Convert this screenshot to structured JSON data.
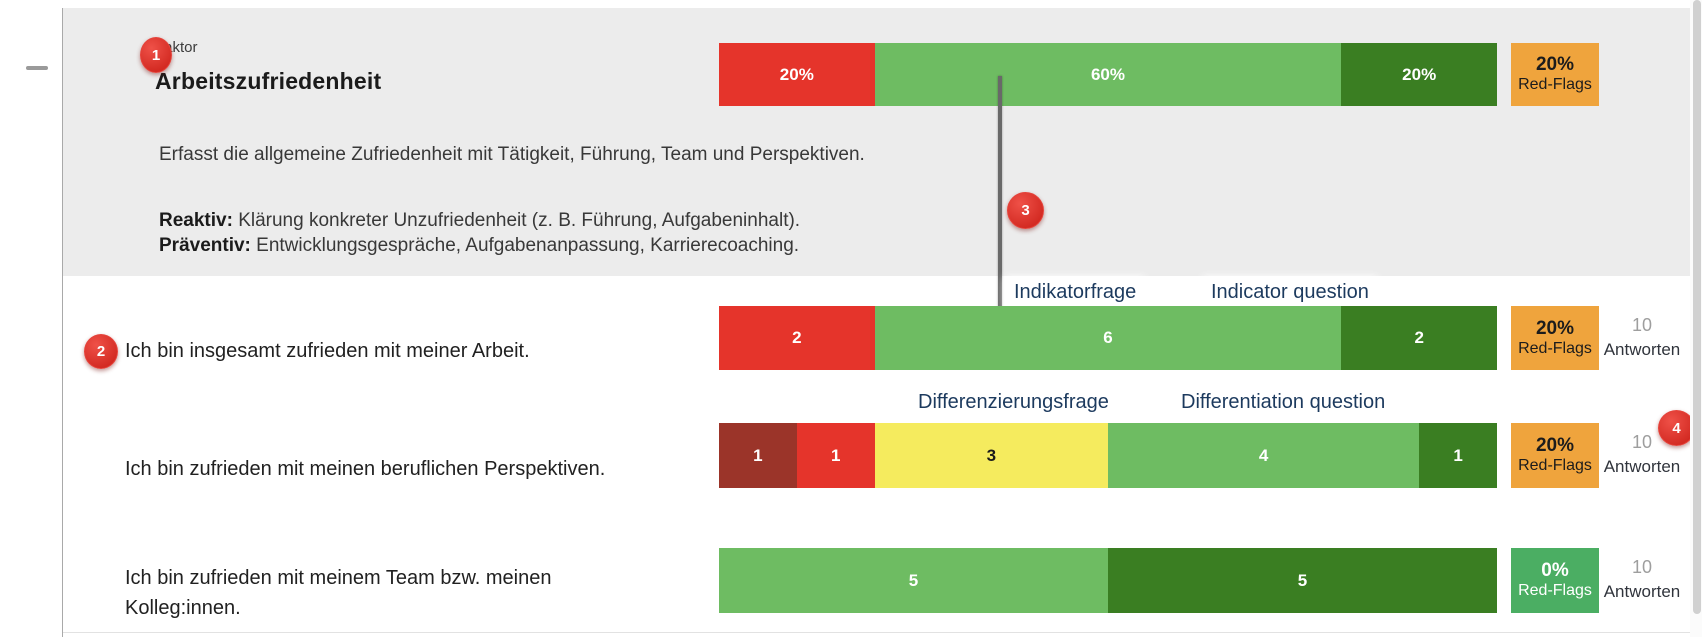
{
  "colors": {
    "red": "#e5342b",
    "dark_red": "#9b3429",
    "yellow": "#f5eb5e",
    "green": "#6ebc62",
    "dark_green": "#3a7e22",
    "orange_badge": "#efa43d",
    "green_badge": "#4bae63",
    "marker_red": "#d32a22",
    "annotation_navy": "#1c3a5e",
    "pointer_line_gray": "#696969"
  },
  "factor": {
    "kicker": "Faktor",
    "title": "Arbeitszufriedenheit",
    "description": "Erfasst die allgemeine Zufriedenheit mit Tätigkeit, Führung, Team und Perspektiven.",
    "reactive_label": "Reaktiv:",
    "reactive_text": " Klärung konkreter Unzufriedenheit (z. B. Führung, Aufgabeninhalt).",
    "preventive_label": "Präventiv:",
    "preventive_text": " Entwicklungsgespräche, Aufgabenanpassung, Karrierecoaching.",
    "summary_bar": {
      "segments": [
        {
          "label": "20%",
          "color": "red",
          "units": 2
        },
        {
          "label": "60%",
          "color": "green",
          "units": 6
        },
        {
          "label": "20%",
          "color": "dark_green",
          "units": 2
        }
      ]
    },
    "red_flags": {
      "percent": "20%",
      "label": "Red-Flags"
    }
  },
  "annotations": {
    "markers": [
      "1",
      "2",
      "3",
      "4"
    ],
    "labels": {
      "indicator_de": "Indikatorfrage",
      "indicator_en": "Indicator question",
      "differentiation_de": "Differenzierungsfrage",
      "differentiation_en": "Differentiation question"
    }
  },
  "questions": [
    {
      "text": "Ich bin insgesamt zufrieden mit meiner Arbeit.",
      "segments": [
        {
          "label": "2",
          "color": "red",
          "units": 2
        },
        {
          "label": "6",
          "color": "green",
          "units": 6
        },
        {
          "label": "2",
          "color": "dark_green",
          "units": 2
        }
      ],
      "red_flags": {
        "percent": "20%",
        "label": "Red-Flags"
      },
      "answers": {
        "count": "10",
        "label": "Antworten"
      }
    },
    {
      "text": "Ich bin zufrieden mit meinen beruflichen Perspektiven.",
      "segments": [
        {
          "label": "1",
          "color": "dark_red",
          "units": 1
        },
        {
          "label": "1",
          "color": "red",
          "units": 1
        },
        {
          "label": "3",
          "color": "yellow",
          "units": 3
        },
        {
          "label": "4",
          "color": "green",
          "units": 4
        },
        {
          "label": "1",
          "color": "dark_green",
          "units": 1
        }
      ],
      "red_flags": {
        "percent": "20%",
        "label": "Red-Flags"
      },
      "answers": {
        "count": "10",
        "label": "Antworten"
      }
    },
    {
      "text": "Ich bin zufrieden mit meinem Team bzw. meinen\nKolleg:innen.",
      "segments": [
        {
          "label": "5",
          "color": "green",
          "units": 5
        },
        {
          "label": "5",
          "color": "dark_green",
          "units": 5
        }
      ],
      "red_flags": {
        "percent": "0%",
        "label": "Red-Flags"
      },
      "answers": {
        "count": "10",
        "label": "Antworten"
      }
    }
  ]
}
